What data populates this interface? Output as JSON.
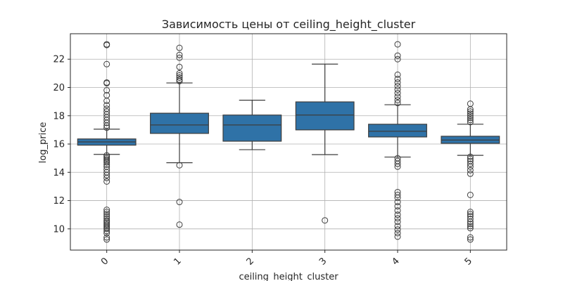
{
  "chart_data": {
    "type": "box",
    "title": "Зависимость цены от ceiling_height_cluster",
    "xlabel": "ceiling_height_cluster",
    "ylabel": "log_price",
    "categories": [
      "0",
      "1",
      "2",
      "3",
      "4",
      "5"
    ],
    "ylim": [
      8.5,
      23.8
    ],
    "yticks": [
      10,
      12,
      14,
      16,
      18,
      20,
      22
    ],
    "grid": true,
    "box_color": "#2f72a7",
    "boxes": [
      {
        "category": "0",
        "q1": 15.92,
        "median": 16.15,
        "q3": 16.36,
        "whisker_low": 15.27,
        "whisker_high": 17.05,
        "outliers": [
          23.05,
          23.0,
          21.65,
          20.35,
          20.3,
          19.8,
          19.45,
          19.05,
          18.75,
          18.5,
          18.3,
          18.1,
          17.9,
          17.7,
          17.5,
          17.3,
          17.15,
          15.2,
          15.1,
          15.0,
          14.9,
          14.8,
          14.7,
          14.55,
          14.4,
          14.2,
          14.0,
          13.8,
          13.6,
          13.35,
          11.35,
          11.2,
          11.05,
          10.9,
          10.75,
          10.6,
          10.5,
          10.4,
          10.3,
          10.2,
          10.1,
          10.0,
          9.85,
          9.7,
          9.4,
          9.25
        ]
      },
      {
        "category": "1",
        "q1": 16.75,
        "median": 17.35,
        "q3": 18.18,
        "whisker_low": 14.68,
        "whisker_high": 20.32,
        "outliers": [
          22.8,
          22.3,
          22.1,
          21.45,
          21.0,
          20.85,
          20.7,
          20.55,
          20.45,
          14.5,
          11.9,
          10.3
        ]
      },
      {
        "category": "2",
        "q1": 16.2,
        "median": 17.35,
        "q3": 18.05,
        "whisker_low": 15.6,
        "whisker_high": 19.1,
        "outliers": []
      },
      {
        "category": "3",
        "q1": 17.0,
        "median": 18.05,
        "q3": 18.98,
        "whisker_low": 15.25,
        "whisker_high": 21.65,
        "outliers": [
          10.6
        ]
      },
      {
        "category": "4",
        "q1": 16.5,
        "median": 16.9,
        "q3": 17.4,
        "whisker_low": 15.08,
        "whisker_high": 18.78,
        "outliers": [
          23.05,
          22.25,
          22.0,
          20.9,
          20.6,
          20.35,
          20.1,
          19.85,
          19.6,
          19.35,
          19.1,
          18.9,
          15.0,
          14.8,
          14.6,
          14.4,
          12.6,
          12.4,
          12.2,
          11.9,
          11.6,
          11.3,
          11.0,
          10.75,
          10.5,
          10.2,
          9.95,
          9.7,
          9.45
        ]
      },
      {
        "category": "5",
        "q1": 16.05,
        "median": 16.28,
        "q3": 16.55,
        "whisker_low": 15.2,
        "whisker_high": 17.4,
        "outliers": [
          18.85,
          18.45,
          18.3,
          18.15,
          18.0,
          17.85,
          17.7,
          17.55,
          15.1,
          14.95,
          14.8,
          14.6,
          14.4,
          14.15,
          13.9,
          12.4,
          11.2,
          11.05,
          10.9,
          10.7,
          10.5,
          10.35,
          10.2,
          10.05,
          9.4,
          9.25
        ]
      }
    ]
  }
}
